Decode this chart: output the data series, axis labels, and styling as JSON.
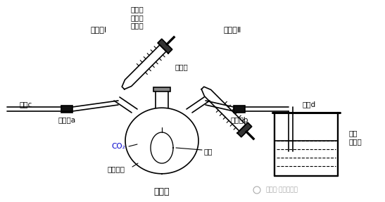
{
  "background_color": "#ffffff",
  "title": "实验三",
  "labels": {
    "injector1": "注射器Ⅰ",
    "injector2": "注射器Ⅱ",
    "naoh_solution": "氢氧化\n钠的乙\n醇溶液",
    "hcl": "稀盐酸",
    "tube_c": "导管c",
    "tube_d": "导管d",
    "clamp_a": "止水夹a",
    "clamp_b": "止水夹b",
    "co2": "CO₂",
    "flask": "三口烧瓶",
    "balloon": "气球",
    "limewater": "澄清\n石灰水",
    "experiment": "实验三",
    "watermark": "公众号·文学与化学"
  },
  "colors": {
    "line": "#000000",
    "co2_text": "#0000cc",
    "watermark": "#aaaaaa",
    "background": "#ffffff",
    "liquid_fill": "#d0d0d0"
  }
}
